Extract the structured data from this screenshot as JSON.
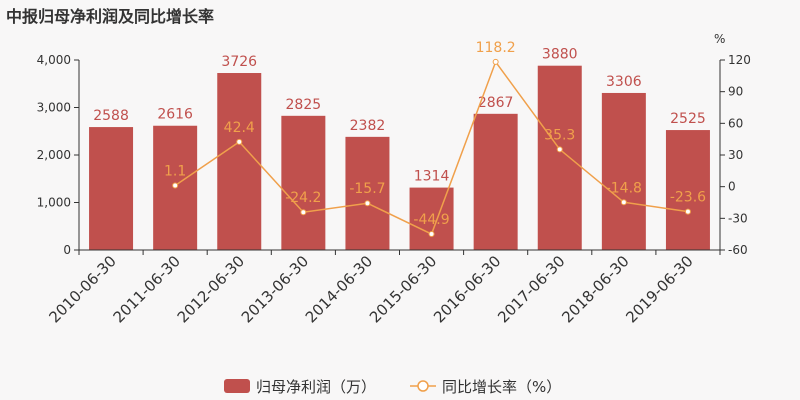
{
  "chart_data": {
    "type": "bar",
    "title": "中报归母净利润及同比增长率",
    "categories": [
      "2010-06-30",
      "2011-06-30",
      "2012-06-30",
      "2013-06-30",
      "2014-06-30",
      "2015-06-30",
      "2016-06-30",
      "2017-06-30",
      "2018-06-30",
      "2019-06-30"
    ],
    "series": [
      {
        "name": "归母净利润（万）",
        "type": "bar",
        "axis": "left",
        "values": [
          2588,
          2616,
          3726,
          2825,
          2382,
          1314,
          2867,
          3880,
          3306,
          2525
        ]
      },
      {
        "name": "同比增长率（%）",
        "type": "line",
        "axis": "right",
        "values": [
          null,
          1.1,
          42.4,
          -24.2,
          -15.7,
          -44.9,
          118.2,
          35.3,
          -14.8,
          -23.6
        ]
      }
    ],
    "left_axis": {
      "ylim": [
        0,
        4000
      ],
      "ticks": [
        "0",
        "1,000",
        "2,000",
        "3,000",
        "4,000"
      ],
      "tick_values": [
        0,
        1000,
        2000,
        3000,
        4000
      ]
    },
    "right_axis": {
      "unit": "%",
      "ylim": [
        -60,
        120
      ],
      "ticks": [
        "-60",
        "-30",
        "0",
        "30",
        "60",
        "90",
        "120"
      ],
      "tick_values": [
        -60,
        -30,
        0,
        30,
        60,
        90,
        120
      ]
    },
    "legend_position": "bottom-center",
    "grid": false,
    "colors": {
      "bar": "#c0504d",
      "line": "#f0a04b",
      "axis": "#333333",
      "background": "#f8f7f7"
    }
  }
}
